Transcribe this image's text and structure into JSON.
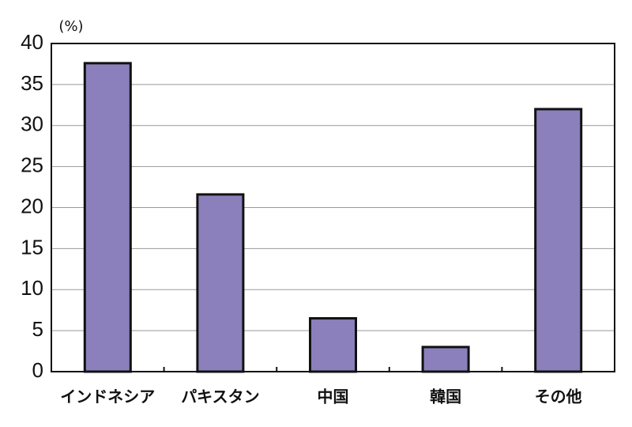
{
  "chart_data": {
    "type": "bar",
    "y_label": "(%)",
    "categories": [
      "インドネシア",
      "パキスタン",
      "中国",
      "韓国",
      "その他"
    ],
    "values": [
      37.6,
      21.6,
      6.5,
      3.0,
      32.0
    ],
    "color": "#8b80bb",
    "ylim": [
      0,
      40
    ],
    "yticks": [
      0,
      5,
      10,
      15,
      20,
      25,
      30,
      35,
      40
    ],
    "grid": true
  }
}
